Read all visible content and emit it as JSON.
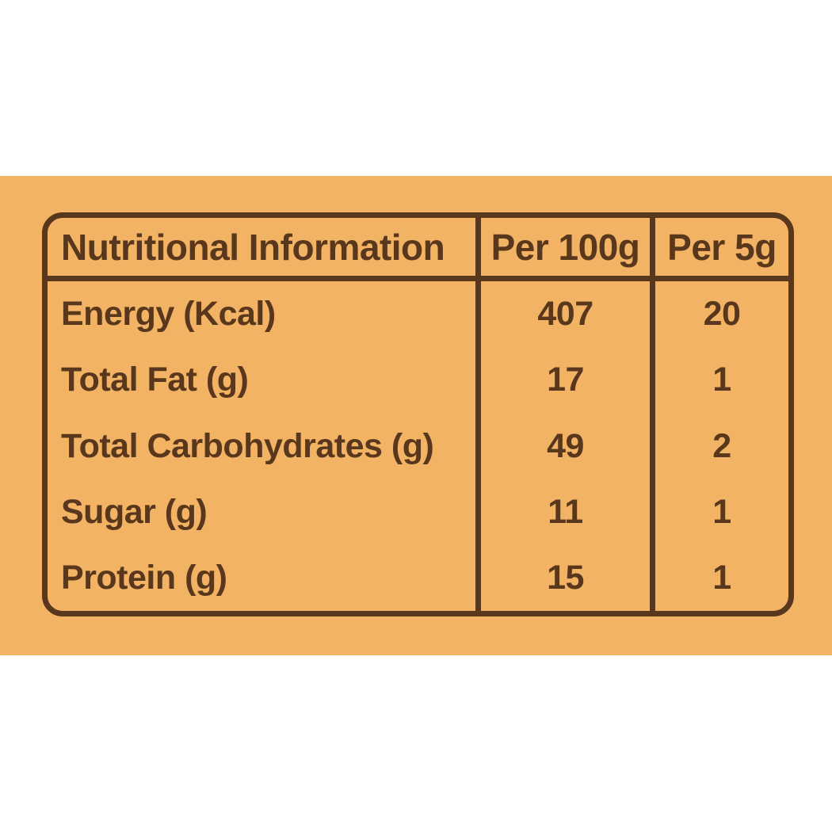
{
  "colors": {
    "page_background": "#ffffff",
    "panel_background": "#F3B365",
    "table_border": "#59371C",
    "text": "#59371C"
  },
  "chart_data": {
    "type": "table",
    "title": "Nutritional Information",
    "columns": [
      "Nutritional Information",
      "Per 100g",
      "Per 5g"
    ],
    "rows": [
      {
        "label": "Energy (Kcal)",
        "per_100g": "407",
        "per_5g": "20"
      },
      {
        "label": "Total Fat (g)",
        "per_100g": "17",
        "per_5g": "1"
      },
      {
        "label": "Total Carbohydrates (g)",
        "per_100g": "49",
        "per_5g": "2"
      },
      {
        "label": "Sugar (g)",
        "per_100g": "11",
        "per_5g": "1"
      },
      {
        "label": "Protein (g)",
        "per_100g": "15",
        "per_5g": "1"
      }
    ]
  }
}
